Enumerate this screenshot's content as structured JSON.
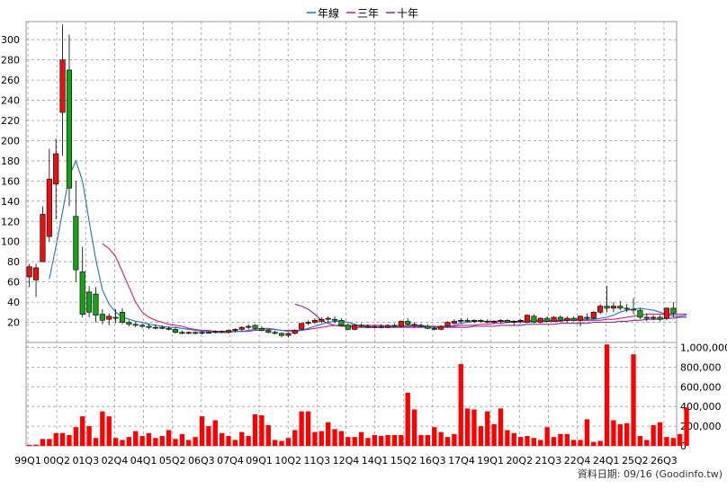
{
  "legend": [
    {
      "label": "年線",
      "color": "#1f6fd1"
    },
    {
      "label": "三年",
      "color": "#e0197a"
    },
    {
      "label": "十年",
      "color": "#8e2a8e"
    }
  ],
  "footer": "資料日期: 09/16 (Goodinfo.tw)",
  "colors": {
    "up": "#e81010",
    "down": "#18a018",
    "volume": "#ff0000",
    "wick": "#000000"
  },
  "chart_data": [
    {
      "type": "candlestick",
      "title": "",
      "y_ticks": [
        20,
        40,
        60,
        80,
        100,
        120,
        140,
        160,
        180,
        200,
        220,
        240,
        260,
        280,
        300
      ],
      "ylim": [
        0,
        318
      ],
      "x_ticks": [
        "99Q1",
        "00Q2",
        "01Q3",
        "02Q4",
        "04Q1",
        "05Q2",
        "06Q3",
        "07Q4",
        "09Q1",
        "10Q2",
        "11Q3",
        "12Q4",
        "14Q1",
        "15Q2",
        "16Q3",
        "17Q4",
        "19Q1",
        "20Q2",
        "21Q3",
        "22Q4",
        "24Q1",
        "25Q2",
        "26Q3"
      ],
      "candles": [
        {
          "o": 65,
          "h": 78,
          "l": 55,
          "c": 75
        },
        {
          "o": 62,
          "h": 78,
          "l": 45,
          "c": 74
        },
        {
          "o": 80,
          "h": 135,
          "l": 80,
          "c": 127
        },
        {
          "o": 105,
          "h": 192,
          "l": 100,
          "c": 162
        },
        {
          "o": 157,
          "h": 202,
          "l": 122,
          "c": 187
        },
        {
          "o": 228,
          "h": 315,
          "l": 185,
          "c": 280
        },
        {
          "o": 270,
          "h": 305,
          "l": 135,
          "c": 153
        },
        {
          "o": 125,
          "h": 160,
          "l": 60,
          "c": 72
        },
        {
          "o": 70,
          "h": 95,
          "l": 25,
          "c": 28
        },
        {
          "o": 50,
          "h": 56,
          "l": 25,
          "c": 30
        },
        {
          "o": 48,
          "h": 55,
          "l": 20,
          "c": 27
        },
        {
          "o": 28,
          "h": 33,
          "l": 18,
          "c": 22
        },
        {
          "o": 23,
          "h": 29,
          "l": 17,
          "c": 26
        },
        {
          "o": 25,
          "h": 33,
          "l": 19,
          "c": 24
        },
        {
          "o": 30,
          "h": 34,
          "l": 18,
          "c": 20
        },
        {
          "o": 20,
          "h": 22,
          "l": 16,
          "c": 18
        },
        {
          "o": 18,
          "h": 20,
          "l": 15,
          "c": 17
        },
        {
          "o": 17,
          "h": 19,
          "l": 14,
          "c": 16
        },
        {
          "o": 16,
          "h": 19,
          "l": 13,
          "c": 15
        },
        {
          "o": 15,
          "h": 18,
          "l": 13,
          "c": 15
        },
        {
          "o": 15,
          "h": 17,
          "l": 13,
          "c": 14
        },
        {
          "o": 14,
          "h": 16,
          "l": 12,
          "c": 13
        },
        {
          "o": 13,
          "h": 15,
          "l": 9,
          "c": 10
        },
        {
          "o": 10,
          "h": 12,
          "l": 8,
          "c": 9
        },
        {
          "o": 9,
          "h": 11,
          "l": 8,
          "c": 10
        },
        {
          "o": 10,
          "h": 11,
          "l": 8,
          "c": 9
        },
        {
          "o": 9,
          "h": 11,
          "l": 8,
          "c": 10
        },
        {
          "o": 10,
          "h": 11,
          "l": 9,
          "c": 10
        },
        {
          "o": 10,
          "h": 12,
          "l": 9,
          "c": 11
        },
        {
          "o": 11,
          "h": 12,
          "l": 9,
          "c": 10
        },
        {
          "o": 10,
          "h": 13,
          "l": 9,
          "c": 12
        },
        {
          "o": 12,
          "h": 14,
          "l": 10,
          "c": 13
        },
        {
          "o": 13,
          "h": 16,
          "l": 11,
          "c": 15
        },
        {
          "o": 15,
          "h": 18,
          "l": 13,
          "c": 16
        },
        {
          "o": 17,
          "h": 18,
          "l": 13,
          "c": 14
        },
        {
          "o": 14,
          "h": 16,
          "l": 11,
          "c": 12
        },
        {
          "o": 12,
          "h": 13,
          "l": 9,
          "c": 10
        },
        {
          "o": 10,
          "h": 12,
          "l": 8,
          "c": 9
        },
        {
          "o": 9,
          "h": 10,
          "l": 5,
          "c": 7
        },
        {
          "o": 7,
          "h": 10,
          "l": 5,
          "c": 9
        },
        {
          "o": 9,
          "h": 13,
          "l": 8,
          "c": 12
        },
        {
          "o": 13,
          "h": 19,
          "l": 12,
          "c": 19
        },
        {
          "o": 19,
          "h": 22,
          "l": 17,
          "c": 20
        },
        {
          "o": 20,
          "h": 24,
          "l": 18,
          "c": 22
        },
        {
          "o": 21,
          "h": 25,
          "l": 19,
          "c": 23
        },
        {
          "o": 23,
          "h": 26,
          "l": 20,
          "c": 24
        },
        {
          "o": 23,
          "h": 26,
          "l": 19,
          "c": 22
        },
        {
          "o": 22,
          "h": 24,
          "l": 16,
          "c": 17
        },
        {
          "o": 17,
          "h": 19,
          "l": 12,
          "c": 13
        },
        {
          "o": 13,
          "h": 18,
          "l": 12,
          "c": 17
        },
        {
          "o": 17,
          "h": 19,
          "l": 15,
          "c": 16
        },
        {
          "o": 16,
          "h": 18,
          "l": 14,
          "c": 15
        },
        {
          "o": 15,
          "h": 17,
          "l": 14,
          "c": 16
        },
        {
          "o": 16,
          "h": 18,
          "l": 14,
          "c": 15
        },
        {
          "o": 15,
          "h": 18,
          "l": 14,
          "c": 17
        },
        {
          "o": 17,
          "h": 19,
          "l": 15,
          "c": 16
        },
        {
          "o": 16,
          "h": 22,
          "l": 15,
          "c": 21
        },
        {
          "o": 21,
          "h": 24,
          "l": 17,
          "c": 18
        },
        {
          "o": 18,
          "h": 20,
          "l": 15,
          "c": 17
        },
        {
          "o": 17,
          "h": 19,
          "l": 15,
          "c": 16
        },
        {
          "o": 16,
          "h": 18,
          "l": 13,
          "c": 14
        },
        {
          "o": 14,
          "h": 16,
          "l": 12,
          "c": 13
        },
        {
          "o": 13,
          "h": 17,
          "l": 12,
          "c": 16
        },
        {
          "o": 16,
          "h": 21,
          "l": 15,
          "c": 20
        },
        {
          "o": 19,
          "h": 23,
          "l": 18,
          "c": 21
        },
        {
          "o": 21,
          "h": 24,
          "l": 19,
          "c": 22
        },
        {
          "o": 22,
          "h": 24,
          "l": 20,
          "c": 21
        },
        {
          "o": 21,
          "h": 23,
          "l": 19,
          "c": 22
        },
        {
          "o": 22,
          "h": 23,
          "l": 20,
          "c": 21
        },
        {
          "o": 21,
          "h": 23,
          "l": 19,
          "c": 20
        },
        {
          "o": 20,
          "h": 22,
          "l": 18,
          "c": 21
        },
        {
          "o": 21,
          "h": 23,
          "l": 19,
          "c": 22
        },
        {
          "o": 22,
          "h": 23,
          "l": 19,
          "c": 20
        },
        {
          "o": 20,
          "h": 22,
          "l": 17,
          "c": 21
        },
        {
          "o": 21,
          "h": 23,
          "l": 19,
          "c": 22
        },
        {
          "o": 20,
          "h": 28,
          "l": 19,
          "c": 27
        },
        {
          "o": 26,
          "h": 28,
          "l": 19,
          "c": 20
        },
        {
          "o": 20,
          "h": 25,
          "l": 19,
          "c": 24
        },
        {
          "o": 24,
          "h": 26,
          "l": 20,
          "c": 21
        },
        {
          "o": 21,
          "h": 26,
          "l": 20,
          "c": 25
        },
        {
          "o": 25,
          "h": 27,
          "l": 21,
          "c": 22
        },
        {
          "o": 22,
          "h": 26,
          "l": 20,
          "c": 24
        },
        {
          "o": 24,
          "h": 26,
          "l": 21,
          "c": 22
        },
        {
          "o": 22,
          "h": 27,
          "l": 16,
          "c": 26
        },
        {
          "o": 25,
          "h": 29,
          "l": 22,
          "c": 24
        },
        {
          "o": 24,
          "h": 31,
          "l": 23,
          "c": 30
        },
        {
          "o": 30,
          "h": 38,
          "l": 28,
          "c": 36
        },
        {
          "o": 36,
          "h": 56,
          "l": 30,
          "c": 34
        },
        {
          "o": 34,
          "h": 40,
          "l": 30,
          "c": 36
        },
        {
          "o": 36,
          "h": 41,
          "l": 32,
          "c": 34
        },
        {
          "o": 34,
          "h": 38,
          "l": 30,
          "c": 33
        },
        {
          "o": 33,
          "h": 44,
          "l": 28,
          "c": 32
        },
        {
          "o": 32,
          "h": 34,
          "l": 23,
          "c": 25
        },
        {
          "o": 25,
          "h": 29,
          "l": 21,
          "c": 24
        },
        {
          "o": 24,
          "h": 27,
          "l": 22,
          "c": 25
        },
        {
          "o": 25,
          "h": 27,
          "l": 21,
          "c": 23
        },
        {
          "o": 24,
          "h": 35,
          "l": 22,
          "c": 34
        },
        {
          "o": 34,
          "h": 40,
          "l": 25,
          "c": 29
        }
      ],
      "series": [
        {
          "name": "年線",
          "values": [
            null,
            null,
            null,
            63,
            95,
            130,
            165,
            180,
            160,
            120,
            82,
            52,
            38,
            30,
            25,
            23,
            21,
            20,
            18,
            17,
            16,
            15,
            15,
            14,
            13,
            12,
            11,
            11,
            10,
            10,
            10,
            11,
            11,
            12,
            13,
            14,
            14,
            13,
            12,
            11,
            11,
            12,
            14,
            16,
            18,
            20,
            21,
            21,
            20,
            18,
            16,
            16,
            15,
            15,
            15,
            16,
            16,
            17,
            17,
            17,
            16,
            15,
            15,
            16,
            17,
            19,
            20,
            21,
            21,
            21,
            21,
            21,
            21,
            21,
            21,
            21,
            22,
            22,
            22,
            22,
            22,
            23,
            23,
            23,
            23,
            23,
            24,
            25,
            27,
            30,
            32,
            33,
            34,
            33,
            32,
            30,
            28,
            26,
            26,
            27
          ]
        },
        {
          "name": "三年",
          "values": [
            null,
            null,
            null,
            null,
            null,
            null,
            null,
            null,
            null,
            null,
            null,
            98,
            93,
            85,
            70,
            55,
            40,
            30,
            25,
            22,
            20,
            18,
            17,
            16,
            14,
            13,
            12,
            12,
            11,
            11,
            11,
            11,
            11,
            11,
            12,
            12,
            13,
            13,
            12,
            12,
            12,
            12,
            13,
            14,
            15,
            16,
            17,
            17,
            17,
            17,
            17,
            17,
            17,
            17,
            16,
            16,
            16,
            16,
            16,
            16,
            16,
            16,
            16,
            16,
            16,
            17,
            17,
            17,
            18,
            18,
            19,
            19,
            20,
            20,
            20,
            21,
            21,
            21,
            21,
            21,
            21,
            22,
            22,
            22,
            22,
            22,
            22,
            23,
            23,
            24,
            25,
            26,
            27,
            28,
            28,
            28,
            28,
            28,
            28,
            28
          ]
        },
        {
          "name": "十年",
          "values": [
            null,
            null,
            null,
            null,
            null,
            null,
            null,
            null,
            null,
            null,
            null,
            null,
            null,
            null,
            null,
            null,
            null,
            null,
            null,
            null,
            null,
            null,
            null,
            null,
            null,
            null,
            null,
            null,
            null,
            null,
            null,
            null,
            null,
            null,
            null,
            null,
            null,
            null,
            null,
            null,
            null,
            null,
            null,
            null,
            null,
            null,
            null,
            null,
            null,
            null,
            null,
            null,
            null,
            null,
            null,
            null,
            null,
            null,
            null,
            null,
            null,
            null,
            null,
            null,
            null,
            null,
            null,
            null,
            null,
            null,
            null,
            null,
            null,
            null,
            null,
            null,
            null,
            null,
            null,
            null,
            null,
            null,
            null,
            null,
            null,
            null,
            null,
            null,
            null,
            null,
            null,
            null,
            null,
            null,
            null,
            null,
            null,
            null,
            null,
            null
          ]
        }
      ],
      "ten_year": [
        null,
        null,
        null,
        null,
        null,
        null,
        null,
        null,
        null,
        null,
        null,
        null,
        null,
        null,
        null,
        null,
        null,
        null,
        null,
        null,
        null,
        null,
        null,
        null,
        null,
        null,
        null,
        null,
        null,
        null,
        null,
        null,
        null,
        null,
        null,
        null,
        null,
        null,
        null,
        null,
        38,
        36,
        33,
        28,
        22,
        19,
        17,
        16,
        16,
        15,
        15,
        15,
        15,
        15,
        15,
        15,
        15,
        15,
        15,
        15,
        15,
        15,
        15,
        15,
        15,
        15,
        15,
        16,
        16,
        16,
        16,
        17,
        17,
        17,
        17,
        18,
        18,
        18,
        18,
        18,
        19,
        19,
        19,
        19,
        19,
        20,
        20,
        20,
        20,
        21,
        21,
        22,
        22,
        23,
        23,
        23,
        24,
        24,
        25,
        25
      ]
    },
    {
      "type": "bar",
      "title": "",
      "y_ticks": [
        "0",
        "200,000",
        "400,000",
        "600,000",
        "800,000",
        "1,000,000"
      ],
      "ylim": [
        0,
        1050000
      ],
      "values": [
        10000,
        12000,
        70000,
        70000,
        130000,
        130000,
        110000,
        190000,
        300000,
        200000,
        80000,
        350000,
        300000,
        80000,
        60000,
        90000,
        150000,
        100000,
        130000,
        80000,
        100000,
        160000,
        70000,
        120000,
        60000,
        90000,
        300000,
        200000,
        260000,
        130000,
        100000,
        60000,
        140000,
        100000,
        320000,
        310000,
        210000,
        60000,
        50000,
        80000,
        160000,
        350000,
        350000,
        140000,
        150000,
        240000,
        170000,
        150000,
        90000,
        90000,
        140000,
        80000,
        110000,
        100000,
        110000,
        110000,
        110000,
        540000,
        370000,
        110000,
        110000,
        190000,
        140000,
        90000,
        120000,
        830000,
        380000,
        370000,
        200000,
        350000,
        220000,
        380000,
        160000,
        130000,
        90000,
        100000,
        80000,
        60000,
        190000,
        90000,
        120000,
        120000,
        60000,
        60000,
        270000,
        40000,
        50000,
        1030000,
        260000,
        220000,
        230000,
        930000,
        100000,
        60000,
        210000,
        240000,
        90000,
        80000,
        120000,
        390000
      ]
    }
  ]
}
